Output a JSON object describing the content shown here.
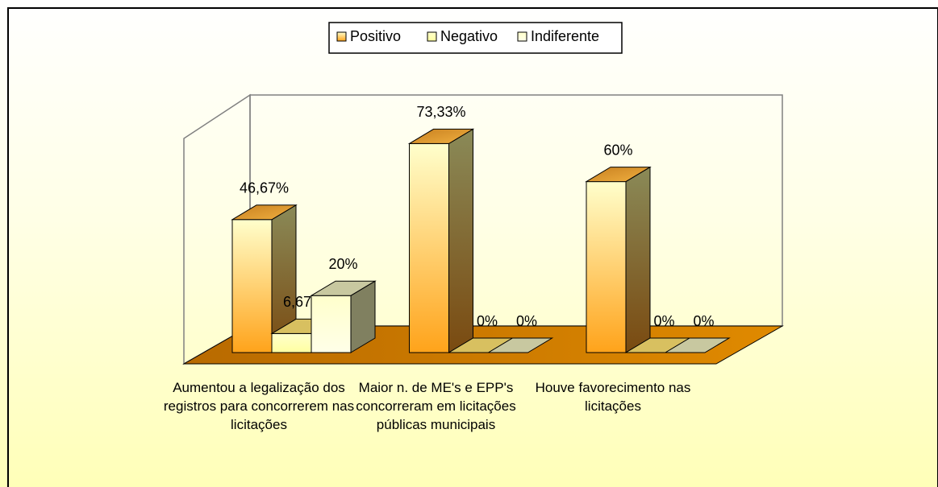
{
  "chart_data": {
    "type": "bar3d",
    "categories": [
      "Aumentou a legalização dos registros para concorrerem nas licitações",
      "Maior n. de ME's e EPP's concorreram em licitações públicas municipais",
      "Houve favorecimento nas licitações"
    ],
    "series": [
      {
        "name": "Positivo",
        "color": "#ffa31a",
        "values": [
          46.67,
          73.33,
          60
        ],
        "value_labels": [
          "46,67%",
          "73,33%",
          "60%"
        ]
      },
      {
        "name": "Negativo",
        "color": "#ffffa0",
        "values": [
          6.67,
          0,
          0
        ],
        "value_labels": [
          "6,67%",
          "0%",
          "0%"
        ]
      },
      {
        "name": "Indiferente",
        "color": "#ffffe8",
        "values": [
          20,
          0,
          0
        ],
        "value_labels": [
          "20%",
          "0%",
          "0%"
        ]
      }
    ],
    "legend": "top"
  }
}
